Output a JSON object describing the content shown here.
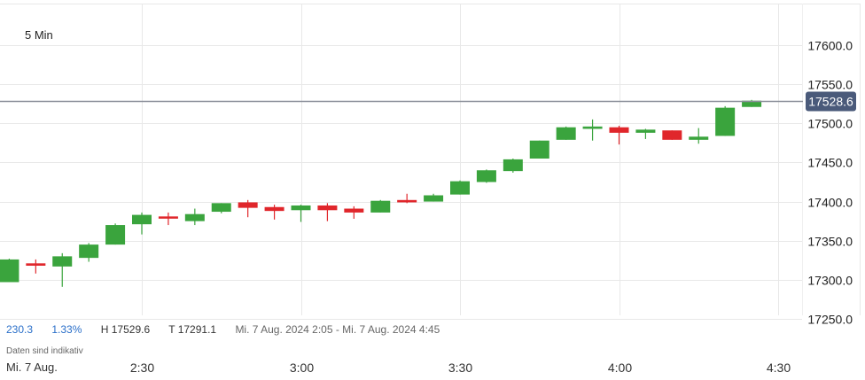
{
  "interval_label": "5 Min",
  "stats": {
    "change": "230.3",
    "change_pct": "1.33%",
    "high": "H 17529.6",
    "low": "T 17291.1",
    "range": "Mi. 7 Aug. 2024 2:05 - Mi. 7 Aug. 2024 4:45"
  },
  "note": "Daten sind indikativ",
  "date_label": "Mi. 7 Aug.",
  "colors": {
    "up": "#3aa43d",
    "down": "#e0262b",
    "grid": "#e8e8e8",
    "last_line": "#8a8f99",
    "last_badge": "#4a5a7a"
  },
  "chart_data": {
    "type": "candlestick",
    "x_domain": [
      "2:00",
      "4:35"
    ],
    "ylim": [
      17220,
      17640
    ],
    "y_ticks": [
      17600.0,
      17550.0,
      17500.0,
      17450.0,
      17400.0,
      17350.0,
      17300.0,
      17250.0
    ],
    "y_tick_labels": [
      "17600.0",
      "17550.0",
      "17500.0",
      "17450.0",
      "17400.0",
      "17350.0",
      "17300.0",
      "17250.0"
    ],
    "x_ticks": [
      "2:30",
      "3:00",
      "3:30",
      "4:00",
      "4:30"
    ],
    "last_price": 17528.6,
    "last_price_label": "17528.6",
    "candles": [
      {
        "t": "2:05",
        "o": 17297,
        "h": 17327,
        "l": 17297,
        "c": 17326
      },
      {
        "t": "2:10",
        "o": 17321,
        "h": 17326,
        "l": 17308,
        "c": 17318
      },
      {
        "t": "2:15",
        "o": 17317,
        "h": 17334,
        "l": 17291,
        "c": 17330
      },
      {
        "t": "2:20",
        "o": 17328,
        "h": 17347,
        "l": 17323,
        "c": 17345
      },
      {
        "t": "2:25",
        "o": 17345,
        "h": 17372,
        "l": 17345,
        "c": 17370
      },
      {
        "t": "2:30",
        "o": 17371,
        "h": 17386,
        "l": 17358,
        "c": 17383
      },
      {
        "t": "2:35",
        "o": 17381,
        "h": 17386,
        "l": 17370,
        "c": 17379
      },
      {
        "t": "2:40",
        "o": 17375,
        "h": 17391,
        "l": 17370,
        "c": 17384
      },
      {
        "t": "2:45",
        "o": 17387,
        "h": 17398,
        "l": 17385,
        "c": 17398
      },
      {
        "t": "2:50",
        "o": 17399,
        "h": 17402,
        "l": 17380,
        "c": 17392
      },
      {
        "t": "2:55",
        "o": 17393,
        "h": 17396,
        "l": 17377,
        "c": 17388
      },
      {
        "t": "3:00",
        "o": 17389,
        "h": 17396,
        "l": 17374,
        "c": 17395
      },
      {
        "t": "3:05",
        "o": 17395,
        "h": 17398,
        "l": 17375,
        "c": 17389
      },
      {
        "t": "3:10",
        "o": 17391,
        "h": 17394,
        "l": 17378,
        "c": 17386
      },
      {
        "t": "3:15",
        "o": 17386,
        "h": 17402,
        "l": 17386,
        "c": 17401
      },
      {
        "t": "3:20",
        "o": 17402,
        "h": 17410,
        "l": 17398,
        "c": 17399
      },
      {
        "t": "3:25",
        "o": 17400,
        "h": 17410,
        "l": 17400,
        "c": 17408
      },
      {
        "t": "3:30",
        "o": 17409,
        "h": 17427,
        "l": 17409,
        "c": 17426
      },
      {
        "t": "3:35",
        "o": 17425,
        "h": 17441,
        "l": 17424,
        "c": 17440
      },
      {
        "t": "3:40",
        "o": 17439,
        "h": 17455,
        "l": 17437,
        "c": 17454
      },
      {
        "t": "3:45",
        "o": 17455,
        "h": 17478,
        "l": 17455,
        "c": 17478
      },
      {
        "t": "3:50",
        "o": 17479,
        "h": 17496,
        "l": 17479,
        "c": 17495
      },
      {
        "t": "3:55",
        "o": 17493,
        "h": 17505,
        "l": 17478,
        "c": 17496
      },
      {
        "t": "4:00",
        "o": 17495,
        "h": 17497,
        "l": 17473,
        "c": 17488
      },
      {
        "t": "4:05",
        "o": 17488,
        "h": 17493,
        "l": 17480,
        "c": 17492
      },
      {
        "t": "4:10",
        "o": 17491,
        "h": 17491,
        "l": 17479,
        "c": 17479
      },
      {
        "t": "4:15",
        "o": 17479,
        "h": 17494,
        "l": 17474,
        "c": 17483
      },
      {
        "t": "4:20",
        "o": 17484,
        "h": 17522,
        "l": 17484,
        "c": 17520
      },
      {
        "t": "4:25",
        "o": 17521,
        "h": 17530,
        "l": 17521,
        "c": 17529
      }
    ]
  }
}
